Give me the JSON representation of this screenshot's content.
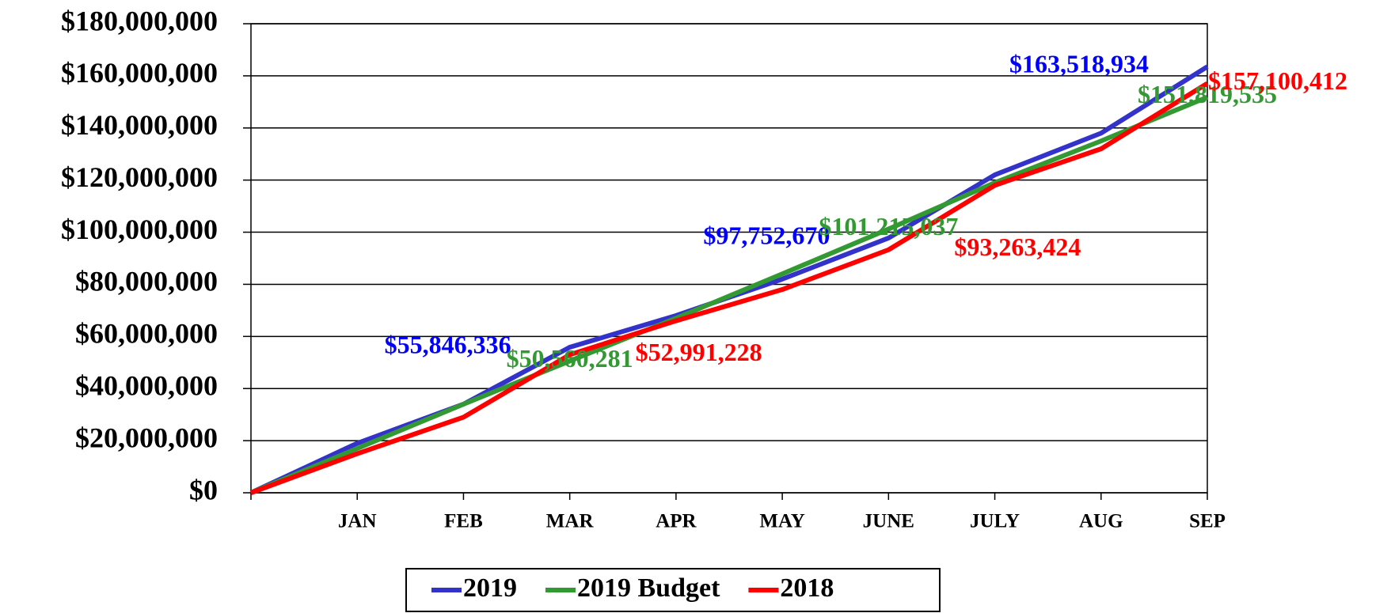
{
  "chart_data": {
    "type": "line",
    "categories": [
      null,
      "JAN",
      "FEB",
      "MAR",
      "APR",
      "MAY",
      "JUNE",
      "JULY",
      "AUG",
      "SEP"
    ],
    "series": [
      {
        "name": "2019",
        "color": "#3333cc",
        "label_color": "#0000ff",
        "values": [
          0,
          19000000,
          34000000,
          55846336,
          68000000,
          82000000,
          97752670,
          122000000,
          138000000,
          163518934
        ],
        "value_labels": [
          null,
          null,
          null,
          "$55,846,336",
          null,
          null,
          "$97,752,670",
          null,
          null,
          "$163,518,934"
        ]
      },
      {
        "name": "2019 Budget",
        "color": "#339933",
        "label_color": "#339933",
        "values": [
          0,
          17000000,
          34000000,
          50560281,
          67000000,
          84000000,
          101215037,
          119000000,
          135000000,
          151819535
        ],
        "value_labels": [
          null,
          null,
          null,
          "$50,560,281",
          null,
          null,
          "$101,215,037",
          null,
          null,
          "$151,819,535"
        ]
      },
      {
        "name": "2018",
        "color": "#ff0000",
        "label_color": "#ff0000",
        "values": [
          0,
          15000000,
          29000000,
          52991228,
          66000000,
          78000000,
          93263424,
          118000000,
          132000000,
          157100412
        ],
        "value_labels": [
          null,
          null,
          null,
          "$52,991,228",
          null,
          null,
          "$93,263,424",
          null,
          null,
          "$157,100,412"
        ]
      }
    ],
    "ylim": [
      0,
      180000000
    ],
    "yticks": [
      {
        "value": 0,
        "label": "$0"
      },
      {
        "value": 20000000,
        "label": "$20,000,000"
      },
      {
        "value": 40000000,
        "label": "$40,000,000"
      },
      {
        "value": 60000000,
        "label": "$60,000,000"
      },
      {
        "value": 80000000,
        "label": "$80,000,000"
      },
      {
        "value": 100000000,
        "label": "$100,000,000"
      },
      {
        "value": 120000000,
        "label": "$120,000,000"
      },
      {
        "value": 140000000,
        "label": "$140,000,000"
      },
      {
        "value": 160000000,
        "label": "$160,000,000"
      },
      {
        "value": 180000000,
        "label": "$180,000,000"
      }
    ],
    "grid": true,
    "legend": "bottom"
  }
}
